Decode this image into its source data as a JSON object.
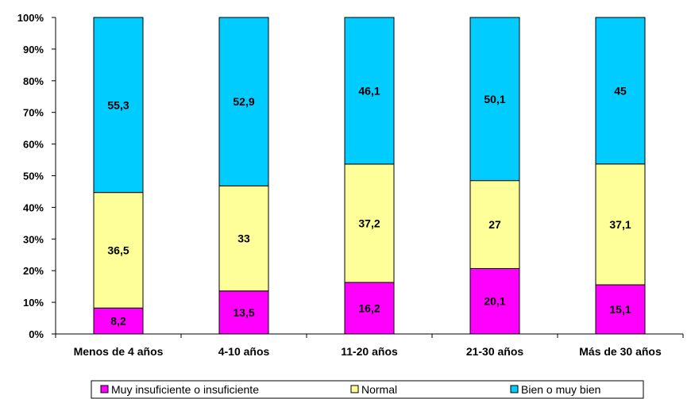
{
  "chart_data": {
    "type": "bar",
    "stacked": "percent",
    "categories": [
      "Menos de 4 años",
      "4-10 años",
      "11-20 años",
      "21-30 años",
      "Más de 30 años"
    ],
    "series": [
      {
        "name": "Muy insuficiente o insuficiente",
        "color": "#ff00ff",
        "values": [
          8.2,
          13.5,
          16.2,
          20.1,
          15.1
        ]
      },
      {
        "name": "Normal",
        "color": "#ffff99",
        "values": [
          36.5,
          33,
          37.2,
          27,
          37.1
        ]
      },
      {
        "name": "Bien o muy bien",
        "color": "#00ccff",
        "values": [
          55.3,
          52.9,
          46.1,
          50.1,
          45
        ]
      }
    ],
    "data_labels": [
      [
        "8,2",
        "13,5",
        "16,2",
        "20,1",
        "15,1"
      ],
      [
        "36,5",
        "33",
        "37,2",
        "27",
        "37,1"
      ],
      [
        "55,3",
        "52,9",
        "46,1",
        "50,1",
        "45"
      ]
    ],
    "yticks": [
      "0%",
      "10%",
      "20%",
      "30%",
      "40%",
      "50%",
      "60%",
      "70%",
      "80%",
      "90%",
      "100%"
    ],
    "ylim": [
      0,
      100
    ],
    "legend_position": "bottom",
    "grid": false,
    "title": "",
    "xlabel": "",
    "ylabel": ""
  }
}
